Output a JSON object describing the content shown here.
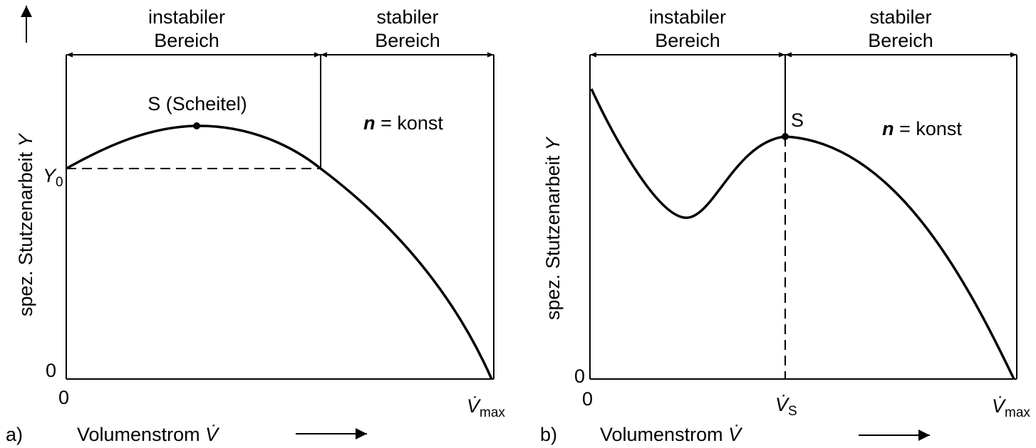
{
  "panels": [
    {
      "label": "a)",
      "instable": [
        "instabiler",
        "Bereich"
      ],
      "stable": [
        "stabiler",
        "Bereich"
      ],
      "point": "S (Scheitel)",
      "speed": {
        "symbol": "n",
        "text": "= konst"
      },
      "y0": {
        "base": "Y",
        "sub": "0"
      },
      "y_zero": "0",
      "x_zero": "0",
      "vmax": {
        "base": "V̇",
        "sub": "max"
      },
      "x_label": {
        "text": "Volumenstrom",
        "symbol": "V̇"
      },
      "y_label": {
        "text": "spez. Stutzenarbeit",
        "symbol": "Y"
      }
    },
    {
      "label": "b)",
      "instable": [
        "instabiler",
        "Bereich"
      ],
      "stable": [
        "stabiler",
        "Bereich"
      ],
      "point": "S",
      "speed": {
        "symbol": "n",
        "text": "= konst"
      },
      "vs": {
        "base": "V̇",
        "sub": "S"
      },
      "y_zero": "0",
      "x_zero": "0",
      "vmax": {
        "base": "V̇",
        "sub": "max"
      },
      "x_label": {
        "text": "Volumenstrom",
        "symbol": "V̇"
      },
      "y_label": {
        "text": "spez. Stutzenarbeit",
        "symbol": "Y"
      }
    }
  ]
}
